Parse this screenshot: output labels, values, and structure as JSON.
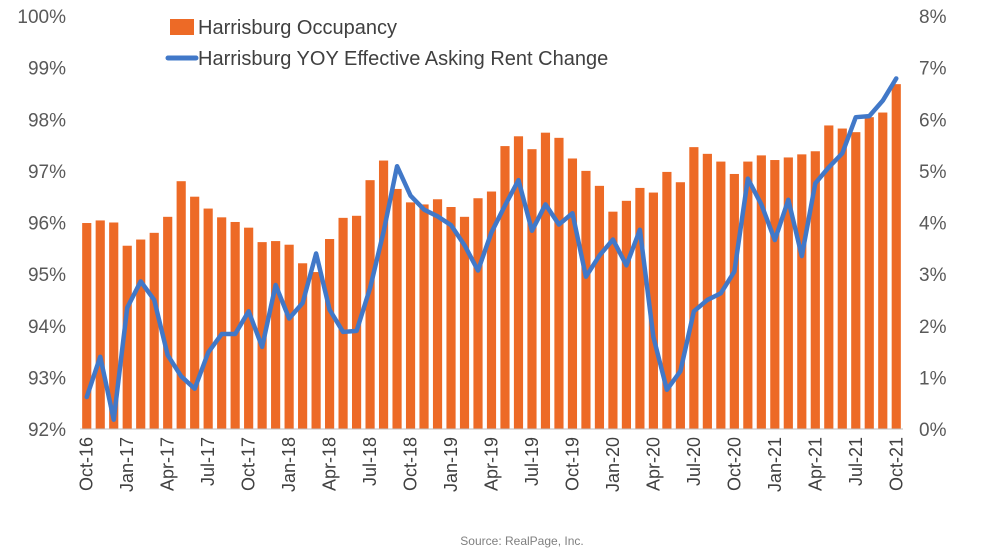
{
  "chart_data": {
    "type": "bar",
    "title": "",
    "source": "Source: RealPage, Inc.",
    "x": [
      "Oct-16",
      "Nov-16",
      "Dec-16",
      "Jan-17",
      "Feb-17",
      "Mar-17",
      "Apr-17",
      "May-17",
      "Jun-17",
      "Jul-17",
      "Aug-17",
      "Sep-17",
      "Oct-17",
      "Nov-17",
      "Dec-17",
      "Jan-18",
      "Feb-18",
      "Mar-18",
      "Apr-18",
      "May-18",
      "Jun-18",
      "Jul-18",
      "Aug-18",
      "Sep-18",
      "Oct-18",
      "Nov-18",
      "Dec-18",
      "Jan-19",
      "Feb-19",
      "Mar-19",
      "Apr-19",
      "May-19",
      "Jun-19",
      "Jul-19",
      "Aug-19",
      "Sep-19",
      "Oct-19",
      "Nov-19",
      "Dec-19",
      "Jan-20",
      "Feb-20",
      "Mar-20",
      "Apr-20",
      "May-20",
      "Jun-20",
      "Jul-20",
      "Aug-20",
      "Sep-20",
      "Oct-20",
      "Nov-20",
      "Dec-20",
      "Jan-21",
      "Feb-21",
      "Mar-21",
      "Apr-21",
      "May-21",
      "Jun-21",
      "Jul-21",
      "Aug-21",
      "Sep-21",
      "Oct-21"
    ],
    "tick_labels": [
      "Oct-16",
      "Jan-17",
      "Apr-17",
      "Jul-17",
      "Oct-17",
      "Jan-18",
      "Apr-18",
      "Jul-18",
      "Oct-18",
      "Jan-19",
      "Apr-19",
      "Jul-19",
      "Oct-19",
      "Jan-20",
      "Apr-20",
      "Jul-20",
      "Oct-20",
      "Jan-21",
      "Apr-21",
      "Jul-21",
      "Oct-21"
    ],
    "left_axis": {
      "min": 92,
      "max": 100,
      "step": 1,
      "format": "{v}%"
    },
    "right_axis": {
      "min": 0,
      "max": 8,
      "step": 1,
      "format": "{v}%"
    },
    "grid": false,
    "legend_position": "top-left",
    "series": [
      {
        "name": "Harrisburg Occupancy",
        "type": "bar",
        "axis": "left",
        "color": "#ED6A26",
        "values": [
          95.99,
          96.04,
          96.0,
          95.55,
          95.67,
          95.8,
          96.11,
          96.8,
          96.5,
          96.27,
          96.1,
          96.01,
          95.9,
          95.62,
          95.64,
          95.57,
          95.21,
          95.04,
          95.68,
          96.09,
          96.13,
          96.82,
          97.2,
          96.65,
          96.39,
          96.35,
          96.45,
          96.3,
          96.11,
          96.47,
          96.6,
          97.48,
          97.67,
          97.42,
          97.74,
          97.64,
          97.24,
          97.0,
          96.71,
          96.21,
          96.42,
          96.67,
          96.58,
          96.98,
          96.78,
          97.46,
          97.33,
          97.18,
          96.94,
          97.18,
          97.3,
          97.21,
          97.26,
          97.32,
          97.38,
          97.88,
          97.82,
          97.75,
          98.04,
          98.13,
          98.68
        ]
      },
      {
        "name": "Harrisburg YOY Effective Asking Rent Change",
        "type": "line",
        "axis": "right",
        "color": "#4178C8",
        "values": [
          0.62,
          1.4,
          0.18,
          2.35,
          2.86,
          2.5,
          1.43,
          1.02,
          0.78,
          1.48,
          1.84,
          1.84,
          2.28,
          1.59,
          2.79,
          2.14,
          2.44,
          3.4,
          2.31,
          1.88,
          1.9,
          2.73,
          3.82,
          5.09,
          4.52,
          4.25,
          4.12,
          3.95,
          3.56,
          3.07,
          3.81,
          4.33,
          4.82,
          3.84,
          4.35,
          3.96,
          4.18,
          2.95,
          3.36,
          3.67,
          3.17,
          3.86,
          1.78,
          0.76,
          1.12,
          2.28,
          2.5,
          2.63,
          3.05,
          4.85,
          4.35,
          3.66,
          4.44,
          3.35,
          4.76,
          5.07,
          5.34,
          6.04,
          6.06,
          6.36,
          6.79
        ]
      }
    ]
  }
}
